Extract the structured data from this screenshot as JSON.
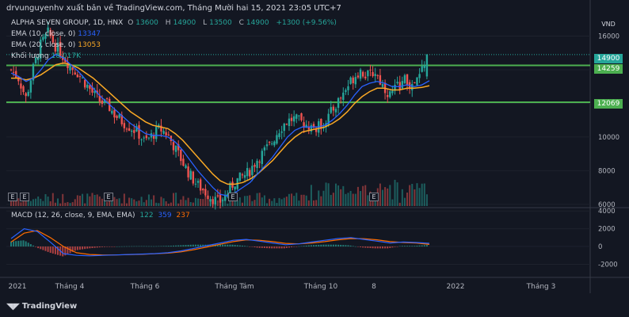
{
  "header": {
    "publisher_line": "drvunguyenhv xuất bản về TradingView.com, Tháng Mười hai 15, 2021 23:05 UTC+7"
  },
  "legend": {
    "symbol": "ALPHA SEVEN GROUP, 1D, HNX",
    "o_label": "O",
    "o": "13600",
    "h_label": "H",
    "h": "14900",
    "l_label": "L",
    "l": "13500",
    "c_label": "C",
    "c": "14900",
    "change": "+1300 (+9.56%)",
    "ema10_label": "EMA (10, close, 0)",
    "ema10_value": "13347",
    "ema20_label": "EMA (20, close, 0)",
    "ema20_value": "13053",
    "volume_label": "Khối lượng",
    "volume_value": "18.017K",
    "macd_label": "MACD (12, 26, close, 9, EMA, EMA)",
    "macd_hist": "122",
    "macd_line": "359",
    "macd_signal": "237"
  },
  "currency": "VND",
  "price_labels": {
    "last": "14900",
    "level_high": "14259",
    "level_low": "12069"
  },
  "events": [
    "E",
    "E",
    "E",
    "E",
    "E"
  ],
  "footer": {
    "brand": "TradingView"
  },
  "colors": {
    "up": "#26a69a",
    "down": "#ef5350",
    "ema10": "#2962ff",
    "ema20": "#f9a825",
    "support": "#4caf50",
    "macd": "#2962ff",
    "signal": "#ff6d00"
  },
  "chart_data": {
    "type": "candlestick",
    "price_axis": {
      "ticks": [
        "16000",
        "14000",
        "12000",
        "10000",
        "8000",
        "6000"
      ],
      "range": [
        5900,
        17200
      ]
    },
    "macd_axis": {
      "ticks": [
        "4000",
        "2000",
        "0",
        "-2000"
      ],
      "range": [
        -3300,
        4200
      ]
    },
    "time_axis": {
      "labels": [
        "2021",
        "Tháng 4",
        "Tháng 6",
        "Tháng Tám",
        "Tháng 10",
        "8",
        "2022",
        "Tháng 3"
      ]
    },
    "horizontal_levels": [
      14259,
      12069
    ],
    "close_path": [
      14000,
      13500,
      12300,
      14100,
      15500,
      16200,
      15400,
      14800,
      14200,
      13800,
      13200,
      12600,
      12100,
      11900,
      11300,
      10900,
      10600,
      10300,
      9700,
      10100,
      10500,
      10200,
      9400,
      8600,
      7800,
      7200,
      6800,
      6400,
      6100,
      6600,
      7300,
      7600,
      7900,
      8600,
      9100,
      9600,
      10400,
      10900,
      11100,
      10900,
      10700,
      10500,
      10800,
      11400,
      12100,
      12800,
      13500,
      14000,
      13600,
      13900,
      13100,
      12500,
      13000,
      13400,
      12900,
      13600,
      14900
    ],
    "ema10_path": [
      13800,
      13600,
      13300,
      13500,
      14000,
      14600,
      14900,
      14700,
      14300,
      13900,
      13400,
      12900,
      12400,
      12000,
      11600,
      11200,
      10800,
      10500,
      10200,
      10100,
      10100,
      10000,
      9700,
      9200,
      8600,
      8000,
      7500,
      7000,
      6600,
      6500,
      6700,
      7000,
      7300,
      7800,
      8300,
      8800,
      9400,
      10000,
      10400,
      10600,
      10600,
      10600,
      10700,
      11000,
      11400,
      11900,
      12500,
      13000,
      13200,
      13300,
      13200,
      13000,
      13000,
      13100,
      13000,
      13100,
      13347
    ],
    "ema20_path": [
      13500,
      13500,
      13400,
      13500,
      13700,
      14000,
      14300,
      14400,
      14300,
      14100,
      13800,
      13500,
      13100,
      12700,
      12300,
      11900,
      11500,
      11200,
      10900,
      10700,
      10600,
      10500,
      10200,
      9800,
      9300,
      8800,
      8300,
      7800,
      7400,
      7200,
      7200,
      7300,
      7500,
      7800,
      8200,
      8600,
      9100,
      9600,
      10000,
      10300,
      10400,
      10500,
      10600,
      10800,
      11100,
      11500,
      12000,
      12400,
      12700,
      12900,
      12900,
      12800,
      12800,
      12900,
      12900,
      12950,
      13053
    ],
    "macd_path": [
      900,
      2000,
      1700,
      500,
      -800,
      -1000,
      -1050,
      -1000,
      -950,
      -900,
      -850,
      -800,
      -700,
      -500,
      -200,
      100,
      400,
      700,
      800,
      600,
      400,
      200,
      300,
      500,
      700,
      900,
      1000,
      800,
      600,
      400,
      500,
      450,
      359
    ],
    "signal_path": [
      500,
      1500,
      1800,
      1000,
      0,
      -700,
      -900,
      -950,
      -950,
      -920,
      -880,
      -820,
      -750,
      -600,
      -350,
      -50,
      250,
      550,
      750,
      700,
      550,
      350,
      300,
      400,
      550,
      750,
      900,
      880,
      750,
      550,
      450,
      400,
      237
    ],
    "volume_note": "Khối lượng 18.017K"
  }
}
